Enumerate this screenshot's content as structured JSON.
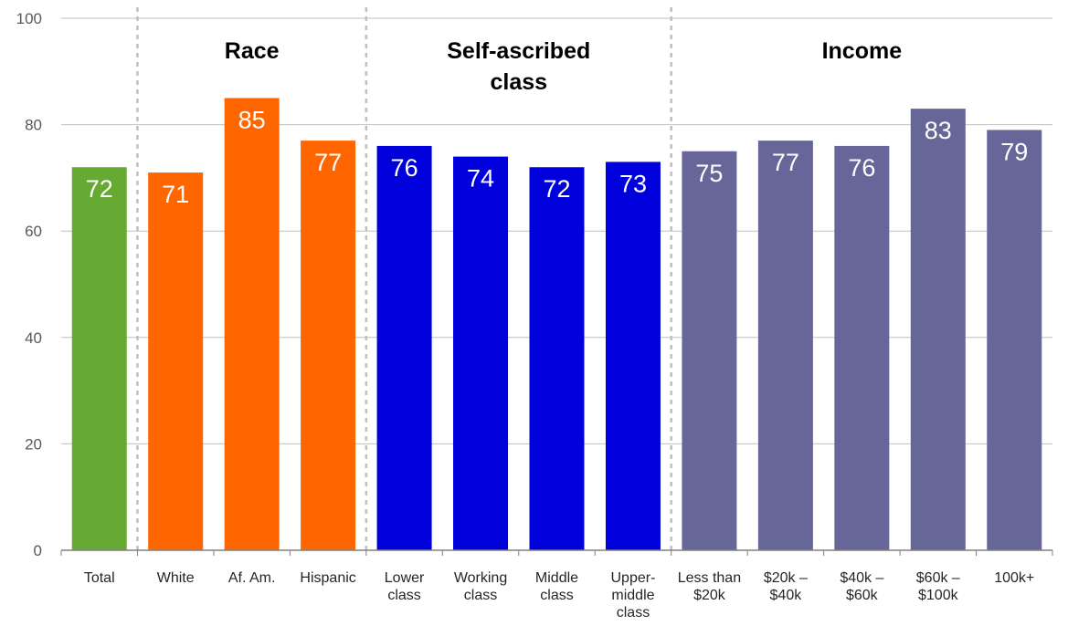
{
  "chart_data": {
    "type": "bar",
    "categories": [
      "Total",
      "White",
      "Af. Am.",
      "Hispanic",
      "Lower class",
      "Working class",
      "Middle class",
      "Upper-middle class",
      "Less than $20k",
      "$20k – $40k",
      "$40k – $60k",
      "$60k – $100k",
      "100k+"
    ],
    "category_lines": [
      [
        "Total"
      ],
      [
        "White"
      ],
      [
        "Af. Am."
      ],
      [
        "Hispanic"
      ],
      [
        "Lower",
        "class"
      ],
      [
        "Working",
        "class"
      ],
      [
        "Middle",
        "class"
      ],
      [
        "Upper-",
        "middle",
        "class"
      ],
      [
        "Less than",
        "$20k"
      ],
      [
        "$20k –",
        "$40k"
      ],
      [
        "$40k –",
        "$60k"
      ],
      [
        "$60k –",
        "$100k"
      ],
      [
        "100k+"
      ]
    ],
    "values": [
      72,
      71,
      85,
      77,
      76,
      74,
      72,
      73,
      75,
      77,
      76,
      83,
      79
    ],
    "data_labels": [
      "72",
      "71",
      "85",
      "77",
      "76",
      "74",
      "72",
      "73",
      "75",
      "77",
      "76",
      "83",
      "79"
    ],
    "bar_colors": [
      "#66AA33",
      "#FF6600",
      "#FF6600",
      "#FF6600",
      "#0000DD",
      "#0000DD",
      "#0000DD",
      "#0000DD",
      "#666699",
      "#666699",
      "#666699",
      "#666699",
      "#666699"
    ],
    "groups": [
      {
        "lines": [
          "Race"
        ],
        "start": 1,
        "end": 3
      },
      {
        "lines": [
          "Self-ascribed",
          "class"
        ],
        "start": 4,
        "end": 7
      },
      {
        "lines": [
          "Income"
        ],
        "start": 8,
        "end": 12
      }
    ],
    "separators_after": [
      0,
      3,
      7
    ],
    "yticks": [
      0,
      20,
      40,
      60,
      80,
      100
    ],
    "ylim": [
      0,
      100
    ],
    "grid": true,
    "title": "",
    "xlabel": "",
    "ylabel": ""
  },
  "colors": {
    "grid": "#BFBFBF",
    "separator": "#BFBFBF",
    "axis": "#808080"
  }
}
